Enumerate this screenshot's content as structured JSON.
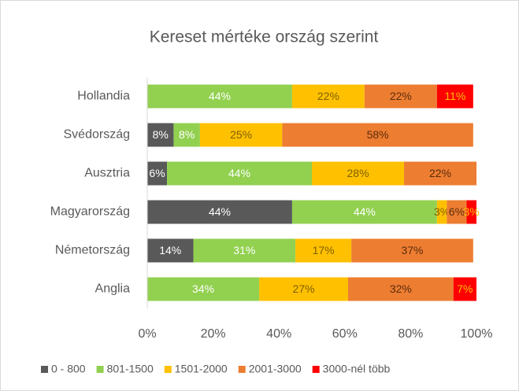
{
  "chart_data": {
    "type": "stacked_barh",
    "title": "Kereset mértéke ország szerint",
    "categories": [
      "Hollandia",
      "Svédország",
      "Ausztria",
      "Magyarország",
      "Németország",
      "Anglia"
    ],
    "series": [
      {
        "name": "0 - 800",
        "color": "#595959",
        "values": [
          null,
          8,
          6,
          44,
          14,
          null
        ],
        "value_labels": [
          null,
          "8%",
          "6%",
          "44%",
          "14%",
          null
        ]
      },
      {
        "name": "801-1500",
        "color": "#92d050",
        "values": [
          44,
          8,
          44,
          44,
          31,
          34
        ],
        "value_labels": [
          "44%",
          "8%",
          "44%",
          "44%",
          "31%",
          "34%"
        ]
      },
      {
        "name": "1501-2000",
        "color": "#ffc000",
        "values": [
          22,
          25,
          28,
          3,
          17,
          27
        ],
        "value_labels": [
          "22%",
          "25%",
          "28%",
          "3%",
          "17%",
          "27%"
        ]
      },
      {
        "name": "2001-3000",
        "color": "#ed7d31",
        "values": [
          22,
          58,
          22,
          6,
          37,
          32
        ],
        "value_labels": [
          "22%",
          "58%",
          "22%",
          "6%",
          "37%",
          "32%"
        ]
      },
      {
        "name": "3000-nél több",
        "color": "#ff0000",
        "values": [
          11,
          null,
          null,
          3,
          null,
          7
        ],
        "value_labels": [
          "11%",
          null,
          null,
          "3%",
          null,
          "7%"
        ]
      }
    ],
    "xlim": [
      0,
      100
    ],
    "xticks": [
      {
        "value": 0,
        "label": "0%"
      },
      {
        "value": 20,
        "label": "20%"
      },
      {
        "value": 40,
        "label": "40%"
      },
      {
        "value": 60,
        "label": "60%"
      },
      {
        "value": 80,
        "label": "80%"
      },
      {
        "value": 100,
        "label": "100%"
      }
    ],
    "legend": "bottom"
  }
}
